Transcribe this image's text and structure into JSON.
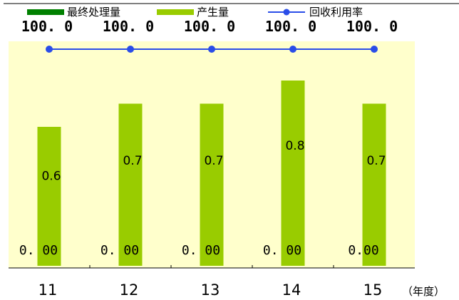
{
  "chart_data": {
    "type": "bar",
    "categories": [
      "11",
      "12",
      "13",
      "14",
      "15"
    ],
    "x_unit_label": "（年度）",
    "series": [
      {
        "name": "最终处理量",
        "type": "bar",
        "color": "#008000",
        "values": [
          0.0,
          0.0,
          0.0,
          0.0,
          0.0
        ],
        "labels": [
          "0. 00",
          "0. 00",
          "0. 00",
          "0. 00",
          "0.00"
        ]
      },
      {
        "name": "产生量",
        "type": "bar",
        "color": "#99cc00",
        "values": [
          0.6,
          0.7,
          0.7,
          0.8,
          0.7
        ],
        "labels": [
          "0.6",
          "0.7",
          "0.7",
          "0.8",
          "0.7"
        ]
      },
      {
        "name": "回收利用率",
        "type": "line",
        "color": "#2a4de8",
        "values": [
          100.0,
          100.0,
          100.0,
          100.0,
          100.0
        ],
        "labels": [
          "100. 0",
          "100. 0",
          "100. 0",
          "100. 0",
          "100. 0"
        ]
      }
    ],
    "legend_position": "top",
    "background_color": "#ffffcc",
    "grid": false
  }
}
